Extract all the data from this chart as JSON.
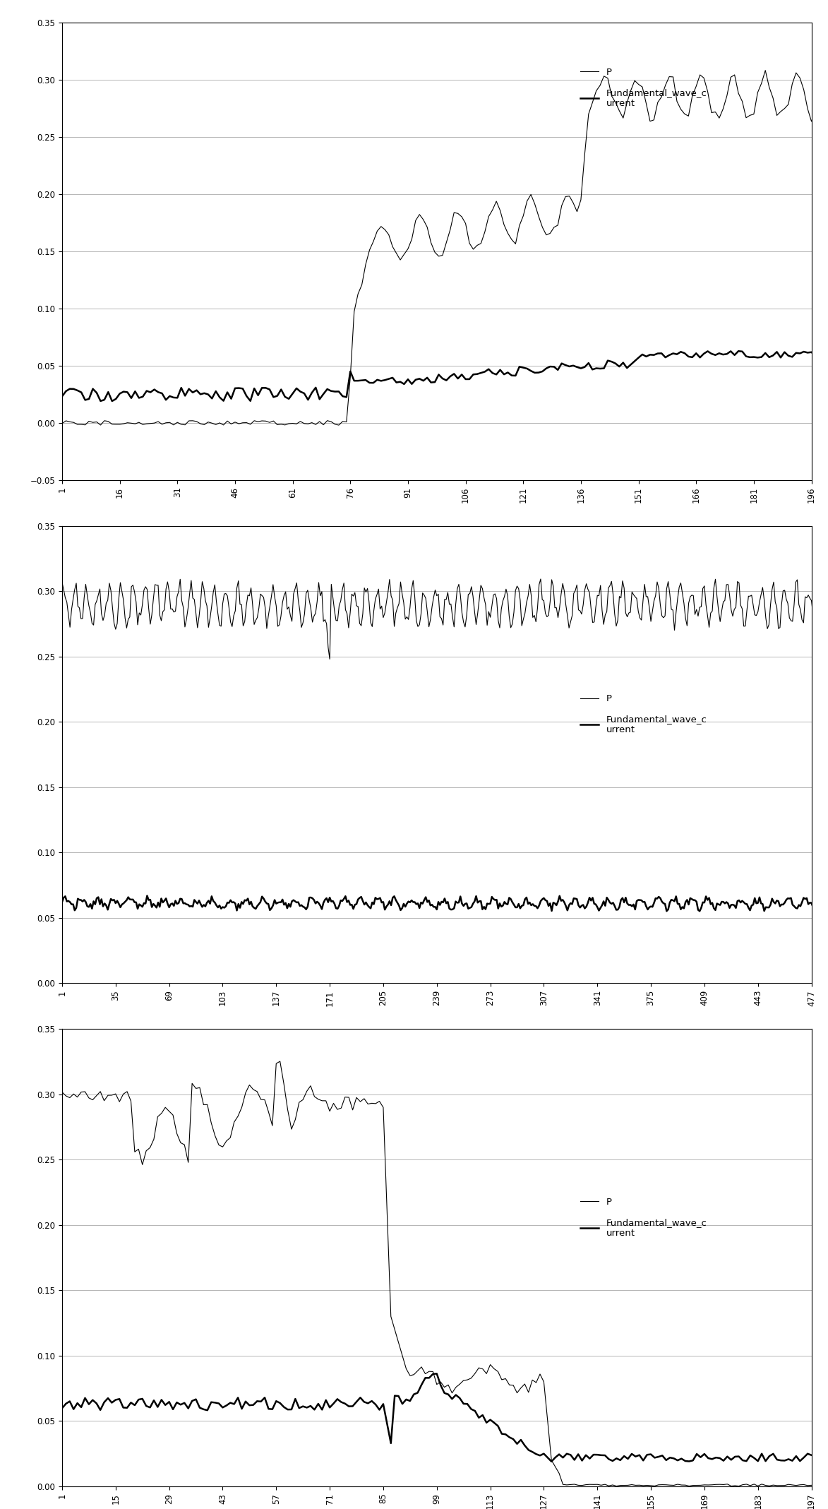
{
  "chart1": {
    "xlim": [
      1,
      196
    ],
    "ylim": [
      -0.05,
      0.35
    ],
    "xticks": [
      1,
      16,
      31,
      46,
      61,
      76,
      91,
      106,
      121,
      136,
      151,
      166,
      181,
      196
    ],
    "yticks": [
      -0.05,
      0,
      0.05,
      0.1,
      0.15,
      0.2,
      0.25,
      0.3,
      0.35
    ]
  },
  "chart2": {
    "xlim": [
      1,
      477
    ],
    "ylim": [
      0,
      0.35
    ],
    "xticks": [
      1,
      35,
      69,
      103,
      137,
      171,
      205,
      239,
      273,
      307,
      341,
      375,
      409,
      443,
      477
    ],
    "yticks": [
      0,
      0.05,
      0.1,
      0.15,
      0.2,
      0.25,
      0.3,
      0.35
    ]
  },
  "chart3": {
    "xlim": [
      1,
      197
    ],
    "ylim": [
      0,
      0.35
    ],
    "xticks": [
      1,
      15,
      29,
      43,
      57,
      71,
      85,
      99,
      113,
      127,
      141,
      155,
      169,
      183,
      197
    ],
    "yticks": [
      0,
      0.05,
      0.1,
      0.15,
      0.2,
      0.25,
      0.3,
      0.35
    ]
  },
  "line_color": "#000000",
  "bg_color": "#ffffff",
  "grid_color": "#aaaaaa",
  "p_linewidth": 0.8,
  "fwc_linewidth": 1.8,
  "legend_p_label": "P",
  "legend_fwc_label": "Fundamental_wave_c\nurrent",
  "tick_fontsize": 8.5,
  "legend_fontsize": 9.5
}
